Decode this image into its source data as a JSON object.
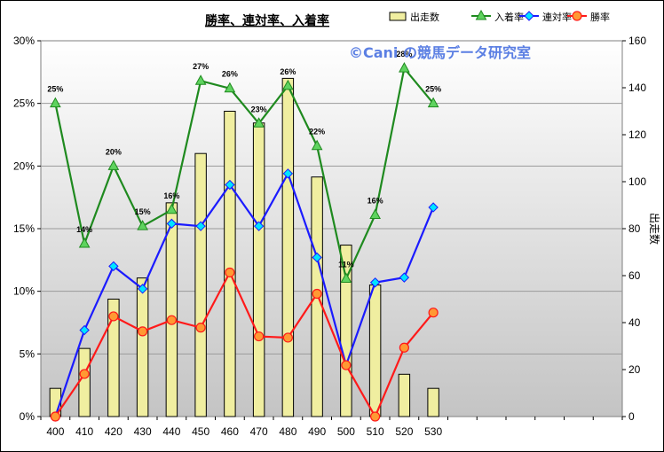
{
  "chart_data": {
    "type": "bar+line",
    "title": "勝率、連対率、入着率",
    "watermark": "©Cani の競馬データ研究室",
    "categories": [
      "400",
      "410",
      "420",
      "430",
      "440",
      "450",
      "460",
      "470",
      "480",
      "490",
      "500",
      "510",
      "520",
      "530"
    ],
    "y_left": {
      "ylim": [
        0,
        30
      ],
      "ticks": [
        "0%",
        "5%",
        "10%",
        "15%",
        "20%",
        "25%",
        "30%"
      ]
    },
    "y_right": {
      "label": "出走数",
      "ylim": [
        0,
        160
      ],
      "ticks": [
        "0",
        "20",
        "40",
        "60",
        "80",
        "100",
        "120",
        "140",
        "160"
      ]
    },
    "bars": {
      "name": "出走数",
      "color": "#f0eea0",
      "values": [
        12,
        29,
        50,
        59,
        91,
        112,
        130,
        125,
        144,
        102,
        73,
        56,
        18,
        12
      ]
    },
    "series": [
      {
        "name": "入着率",
        "color": "#1f8a1f",
        "marker": "triangle",
        "values": [
          25.0,
          13.8,
          20.0,
          15.2,
          16.5,
          26.8,
          26.2,
          23.4,
          26.4,
          21.6,
          11.0,
          16.1,
          27.8,
          25.0
        ],
        "labels": [
          "25%",
          "14%",
          "20%",
          "15%",
          "16%",
          "27%",
          "26%",
          "23%",
          "26%",
          "22%",
          "11%",
          "16%",
          "28%",
          "25%"
        ]
      },
      {
        "name": "連対率",
        "color": "#1b1bff",
        "marker": "diamond",
        "values": [
          0,
          6.9,
          12.0,
          10.2,
          15.4,
          15.2,
          18.5,
          15.2,
          19.4,
          12.7,
          4.1,
          10.7,
          11.1,
          16.7
        ]
      },
      {
        "name": "勝率",
        "color": "#ff1a1a",
        "marker": "circle",
        "values": [
          0,
          3.4,
          8.0,
          6.8,
          7.7,
          7.1,
          11.5,
          6.4,
          6.3,
          9.8,
          4.1,
          0,
          5.5,
          8.3
        ]
      }
    ],
    "legend": {
      "position": "top-right"
    },
    "grid": true
  }
}
